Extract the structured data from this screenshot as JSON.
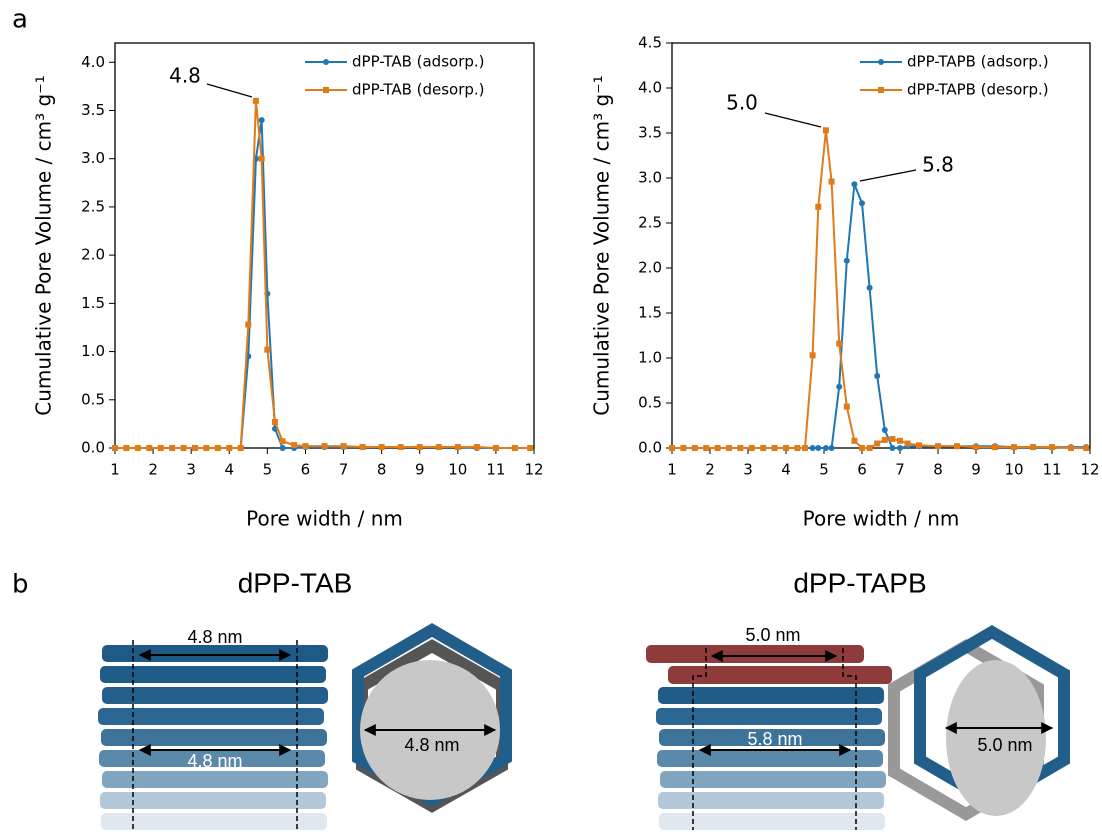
{
  "panel_labels": [
    "a",
    "b"
  ],
  "chart_data": [
    {
      "type": "line",
      "xlabel": "Pore width / nm",
      "ylabel": "Cumulative Pore Volume / cm³ g⁻¹",
      "xlim": [
        1,
        12
      ],
      "ylim": [
        0,
        4.2
      ],
      "xticks": [
        1,
        2,
        3,
        4,
        5,
        6,
        7,
        8,
        9,
        10,
        11,
        12
      ],
      "yticks": [
        {
          "value": 0,
          "label": "0.0"
        },
        {
          "value": 0.5,
          "label": "0.5"
        },
        {
          "value": 1,
          "label": "1.0"
        },
        {
          "value": 1.5,
          "label": "1.5"
        },
        {
          "value": 2,
          "label": "2.0"
        },
        {
          "value": 2.5,
          "label": "2.5"
        },
        {
          "value": 3,
          "label": "3.0"
        },
        {
          "value": 3.5,
          "label": "3.5"
        },
        {
          "value": 4,
          "label": "4.0"
        }
      ],
      "legend": "upper right",
      "annotations": [
        "4.8"
      ],
      "x": [
        1,
        1.3,
        1.6,
        1.9,
        2.2,
        2.5,
        2.8,
        3.1,
        3.4,
        3.7,
        4.0,
        4.3,
        4.5,
        4.7,
        4.85,
        5.0,
        5.2,
        5.4,
        5.7,
        6.0,
        6.5,
        7.0,
        7.5,
        8.0,
        8.5,
        9.0,
        9.5,
        10.0,
        10.5,
        11.0,
        11.5,
        11.9
      ],
      "series": [
        {
          "name": "dPP-TAB (adsorp.)",
          "color": "#1f77b4",
          "marker": "circle",
          "values": [
            0,
            0,
            0,
            0,
            0,
            0,
            0,
            0,
            0,
            0,
            0,
            0,
            0.95,
            3.0,
            3.4,
            1.6,
            0.2,
            0.0,
            0.0,
            0.01,
            0.01,
            0.01,
            0.01,
            0.01,
            0.01,
            0.01,
            0.01,
            0.01,
            0.0,
            0.0,
            0.0,
            0.0
          ]
        },
        {
          "name": "dPP-TAB (desorp.)",
          "color": "#e07b1a",
          "marker": "square",
          "values": [
            0,
            0,
            0,
            0,
            0,
            0,
            0,
            0,
            0,
            0,
            0,
            0,
            1.28,
            3.6,
            3.0,
            1.02,
            0.27,
            0.07,
            0.03,
            0.02,
            0.02,
            0.02,
            0.01,
            0.01,
            0.01,
            0.01,
            0.01,
            0.01,
            0.01,
            0.0,
            0.0,
            0.0
          ]
        }
      ]
    },
    {
      "type": "line",
      "xlabel": "Pore width / nm",
      "ylabel": "Cumulative Pore Volume / cm³ g⁻¹",
      "xlim": [
        1,
        12
      ],
      "ylim": [
        0,
        4.5
      ],
      "xticks": [
        1,
        2,
        3,
        4,
        5,
        6,
        7,
        8,
        9,
        10,
        11,
        12
      ],
      "yticks": [
        {
          "value": 0,
          "label": "0.0"
        },
        {
          "value": 0.5,
          "label": "0.5"
        },
        {
          "value": 1,
          "label": "1.0"
        },
        {
          "value": 1.5,
          "label": "1.5"
        },
        {
          "value": 2,
          "label": "2.0"
        },
        {
          "value": 2.5,
          "label": "2.5"
        },
        {
          "value": 3,
          "label": "3.0"
        },
        {
          "value": 3.5,
          "label": "3.5"
        },
        {
          "value": 4,
          "label": "4.0"
        },
        {
          "value": 4.5,
          "label": "4.5"
        }
      ],
      "legend": "upper right",
      "annotations": [
        "5.0",
        "5.8"
      ],
      "x": [
        1,
        1.3,
        1.6,
        1.9,
        2.2,
        2.5,
        2.8,
        3.1,
        3.4,
        3.7,
        4.0,
        4.3,
        4.5,
        4.7,
        4.85,
        5.05,
        5.2,
        5.4,
        5.6,
        5.8,
        6.0,
        6.2,
        6.4,
        6.6,
        6.8,
        7.0,
        7.2,
        7.5,
        8.0,
        8.5,
        9.0,
        9.5,
        10.0,
        10.5,
        11.0,
        11.5,
        11.9
      ],
      "series": [
        {
          "name": "dPP-TAPB (adsorp.)",
          "color": "#1f77b4",
          "marker": "circle",
          "values": [
            0,
            0,
            0,
            0,
            0,
            0,
            0,
            0,
            0,
            0,
            0,
            0,
            0,
            0,
            0,
            0,
            0,
            0.68,
            2.08,
            2.93,
            2.72,
            1.78,
            0.8,
            0.2,
            0.0,
            0.0,
            0.02,
            0.02,
            0.02,
            0.02,
            0.02,
            0.02,
            0.01,
            0.01,
            0.01,
            0.01,
            0.01
          ]
        },
        {
          "name": "dPP-TAPB (desorp.)",
          "color": "#e07b1a",
          "marker": "square",
          "values": [
            0,
            0,
            0,
            0,
            0,
            0,
            0,
            0,
            0,
            0,
            0,
            0,
            0.0,
            1.03,
            2.68,
            3.53,
            2.96,
            1.16,
            0.46,
            0.08,
            0.0,
            0.0,
            0.05,
            0.09,
            0.1,
            0.08,
            0.05,
            0.03,
            0.02,
            0.02,
            0.01,
            0.01,
            0.01,
            0.01,
            0.01,
            0.0,
            0.0
          ]
        }
      ]
    }
  ],
  "diagrams": [
    {
      "title": "dPP-TAB",
      "labels": [
        "4.8 nm",
        "4.8 nm",
        "4.8 nm"
      ]
    },
    {
      "title": "dPP-TAPB",
      "labels": [
        "5.0 nm",
        "5.8 nm",
        "5.0 nm"
      ]
    }
  ]
}
